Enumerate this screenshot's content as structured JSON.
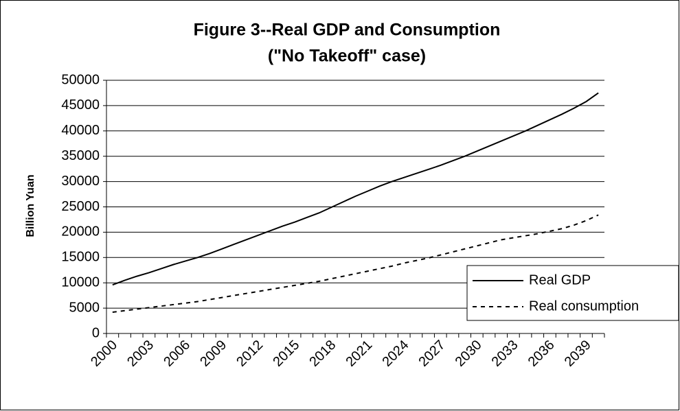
{
  "chart_data": {
    "type": "line",
    "title": [
      "Figure 3--Real GDP and Consumption",
      "(\"No Takeoff\" case)"
    ],
    "y_label": "Billion Yuan",
    "categories": [
      "2000",
      null,
      null,
      "2003",
      null,
      null,
      "2006",
      null,
      null,
      "2009",
      null,
      null,
      "2012",
      null,
      null,
      "2015",
      null,
      null,
      "2018",
      null,
      null,
      "2021",
      null,
      null,
      "2024",
      null,
      null,
      "2027",
      null,
      null,
      "2030",
      null,
      null,
      "2033",
      null,
      null,
      "2036",
      null,
      null,
      "2039",
      null
    ],
    "series": [
      {
        "name": "Real GDP",
        "color": "#000000",
        "dash": false,
        "values": [
          9600,
          10500,
          11300,
          12000,
          12800,
          13600,
          14300,
          15000,
          15800,
          16700,
          17600,
          18500,
          19400,
          20300,
          21200,
          22000,
          22900,
          23800,
          24900,
          26000,
          27100,
          28100,
          29100,
          30000,
          30800,
          31600,
          32400,
          33200,
          34100,
          35000,
          36000,
          37000,
          38000,
          39000,
          40000,
          41100,
          42200,
          43300,
          44500,
          45800,
          47500
        ]
      },
      {
        "name": "Real consumption",
        "color": "#000000",
        "dash": true,
        "values": [
          4200,
          4500,
          4800,
          5100,
          5400,
          5700,
          6000,
          6300,
          6700,
          7100,
          7500,
          7900,
          8300,
          8700,
          9100,
          9500,
          9900,
          10300,
          10800,
          11300,
          11800,
          12300,
          12800,
          13300,
          13900,
          14400,
          14900,
          15500,
          16100,
          16700,
          17300,
          17900,
          18500,
          18900,
          19300,
          19700,
          20200,
          20700,
          21400,
          22300,
          23400
        ]
      }
    ],
    "ylim": [
      0,
      50000
    ],
    "yticks": [
      0,
      5000,
      10000,
      15000,
      20000,
      25000,
      30000,
      35000,
      40000,
      45000,
      50000
    ],
    "grid": true,
    "legend": "bottom-right"
  }
}
